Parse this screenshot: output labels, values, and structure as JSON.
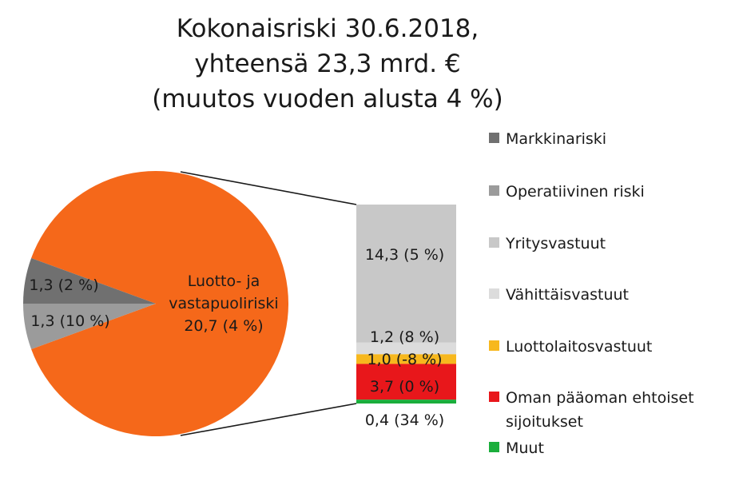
{
  "title": {
    "line1": "Kokonaisriski 30.6.2018,",
    "line2": "yhteensä 23,3 mrd. €",
    "line3": "(muutos vuoden alusta 4 %)"
  },
  "chart_data": {
    "type": "pie",
    "title": "Kokonaisriski 30.6.2018, yhteensä 23,3 mrd. € (muutos vuoden alusta 4 %)",
    "pie": {
      "slices": [
        {
          "label_lines": [
            "Luotto- ja",
            "vastapuoliriski",
            "20,7 (4 %)"
          ],
          "value": 20.7,
          "change_pct": 4,
          "color": "#F5681A"
        },
        {
          "label_lines": [
            "1,3 (2 %)"
          ],
          "value": 1.3,
          "change_pct": 2,
          "color": "#9B9B9B",
          "legend": "Operatiivinen riski"
        },
        {
          "label_lines": [
            "1,3 (10 %)"
          ],
          "value": 1.3,
          "change_pct": 10,
          "color": "#707070",
          "legend": "Markkinariski"
        }
      ]
    },
    "breakdown_bar": {
      "of": "Luotto- ja vastapuoliriski",
      "segments": [
        {
          "label": "14,3 (5 %)",
          "value": 14.3,
          "change_pct": 5,
          "color": "#C8C8C8",
          "legend": "Yritysvastuut"
        },
        {
          "label": "1,2 (8 %)",
          "value": 1.2,
          "change_pct": 8,
          "color": "#DCDCDC",
          "legend": "Vähittäisvastuut"
        },
        {
          "label": "1,0 (-8 %)",
          "value": 1.0,
          "change_pct": -8,
          "color": "#F7B81E",
          "legend": "Luottolaitosvastuut"
        },
        {
          "label": "3,7 (0 %)",
          "value": 3.7,
          "change_pct": 0,
          "color": "#E8171B",
          "legend": "Oman pääoman ehtoiset sijoitukset"
        },
        {
          "label": "0,4 (34 %)",
          "value": 0.4,
          "change_pct": 34,
          "color": "#1BAE3C",
          "legend": "Muut"
        }
      ]
    },
    "legend": {
      "position": "right",
      "items": [
        {
          "lines": [
            "Markkinariski"
          ],
          "color": "#707070"
        },
        {
          "lines": [
            "Operatiivinen riski"
          ],
          "color": "#9B9B9B"
        },
        {
          "lines": [
            "Yritysvastuut"
          ],
          "color": "#C8C8C8"
        },
        {
          "lines": [
            "Vähittäisvastuut"
          ],
          "color": "#DCDCDC"
        },
        {
          "lines": [
            "Luottolaitosvastuut"
          ],
          "color": "#F7B81E"
        },
        {
          "lines": [
            "Oman pääoman ehtoiset",
            "sijoitukset"
          ],
          "color": "#E8171B"
        },
        {
          "lines": [
            "Muut"
          ],
          "color": "#1BAE3C"
        }
      ]
    }
  }
}
